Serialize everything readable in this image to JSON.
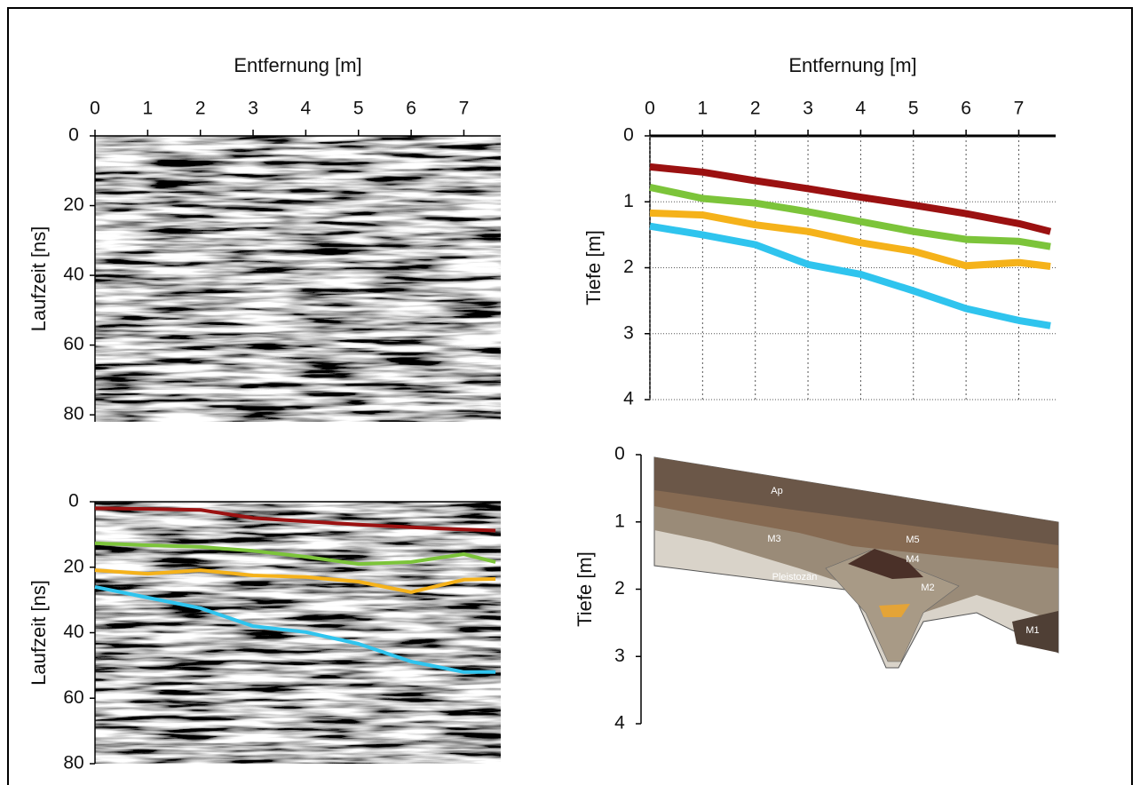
{
  "chart_data": [
    {
      "type": "radargram",
      "x_label": "Entfernung [m]",
      "y_label": "Laufzeit [ns]",
      "xlim": [
        0,
        7.7
      ],
      "xticks": [
        0,
        1,
        2,
        3,
        4,
        5,
        6,
        7
      ],
      "ylim": [
        0,
        82
      ],
      "yticks": [
        0,
        20,
        40,
        60,
        80
      ]
    },
    {
      "type": "line",
      "x_label": "Entfernung [m]",
      "y_label": "Tiefe [m]",
      "x": [
        0,
        1,
        2,
        3,
        4,
        5,
        6,
        7,
        7.6
      ],
      "series": [
        {
          "color": "#9b1111",
          "values": [
            0.47,
            0.55,
            0.68,
            0.8,
            0.93,
            1.05,
            1.18,
            1.33,
            1.45
          ]
        },
        {
          "color": "#7cc43a",
          "values": [
            0.78,
            0.95,
            1.02,
            1.15,
            1.3,
            1.45,
            1.57,
            1.6,
            1.68
          ]
        },
        {
          "color": "#f5b21a",
          "values": [
            1.17,
            1.2,
            1.35,
            1.45,
            1.62,
            1.75,
            1.97,
            1.92,
            1.98
          ]
        },
        {
          "color": "#2fc4ee",
          "values": [
            1.37,
            1.5,
            1.65,
            1.95,
            2.1,
            2.35,
            2.62,
            2.8,
            2.88
          ]
        }
      ],
      "xlim": [
        0,
        7.7
      ],
      "xticks": [
        0,
        1,
        2,
        3,
        4,
        5,
        6,
        7
      ],
      "ylim": [
        0,
        4
      ],
      "yticks": [
        0,
        1,
        2,
        3,
        4
      ],
      "grid": true
    },
    {
      "type": "radargram",
      "y_label": "Laufzeit [ns]",
      "x": [
        0,
        1,
        2,
        3,
        4,
        5,
        6,
        7,
        7.6
      ],
      "series": [
        {
          "color": "#9b1111",
          "values": [
            2,
            2.2,
            2.5,
            5,
            6,
            7,
            7.8,
            8.5,
            8.8
          ]
        },
        {
          "color": "#7cc43a",
          "values": [
            12.7,
            13.3,
            13.8,
            15,
            16.8,
            19,
            18.4,
            16,
            18.4
          ]
        },
        {
          "color": "#f5b21a",
          "values": [
            20.9,
            22,
            20.9,
            22.5,
            23,
            24.4,
            27.6,
            23.8,
            23.6
          ]
        },
        {
          "color": "#2fc4ee",
          "values": [
            26,
            29.3,
            32.5,
            38,
            39.8,
            43.4,
            48.8,
            52,
            52
          ]
        }
      ],
      "xlim": [
        0,
        7.7
      ],
      "ylim": [
        0,
        80
      ],
      "yticks": [
        0,
        20,
        40,
        60,
        80
      ]
    },
    {
      "type": "profile",
      "y_label": "Tiefe [m]",
      "ylim": [
        0,
        4
      ],
      "yticks": [
        0,
        1,
        2,
        3,
        4
      ],
      "layers": [
        "Ap",
        "M5",
        "M4",
        "M3",
        "M2",
        "M1",
        "Pleistozän"
      ]
    }
  ]
}
